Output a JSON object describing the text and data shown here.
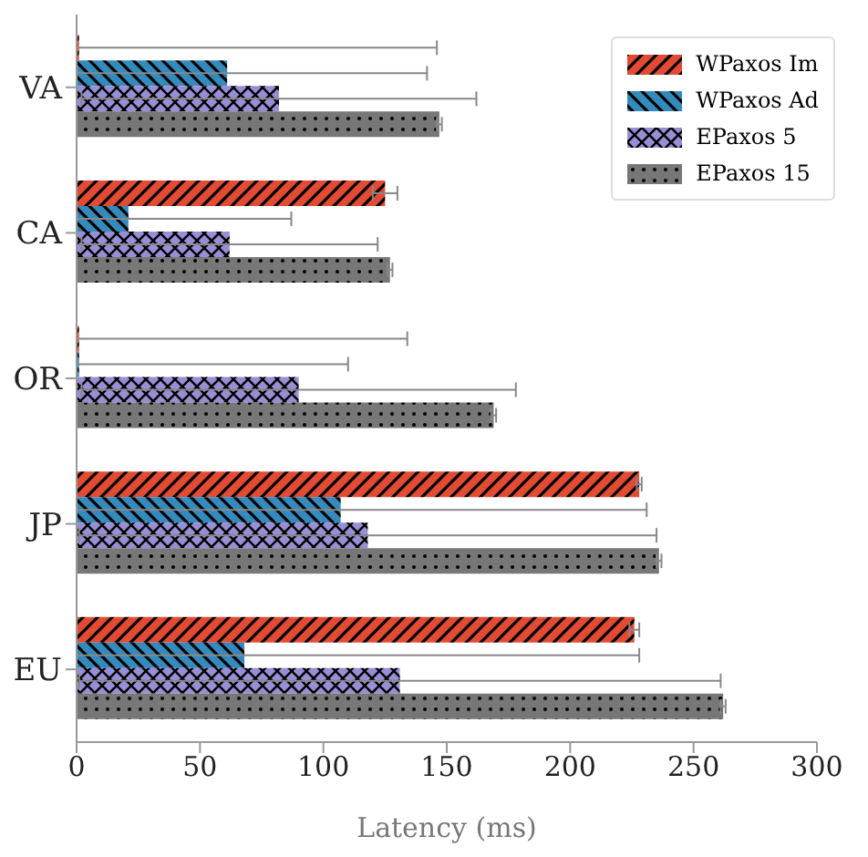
{
  "chart_data": {
    "type": "bar",
    "orientation": "horizontal",
    "xlabel": "Latency (ms)",
    "categories": [
      "VA",
      "CA",
      "OR",
      "JP",
      "EU"
    ],
    "series": [
      {
        "name": "WPaxos Im",
        "color": "#e24a33",
        "values": [
          1,
          125,
          1,
          228,
          226
        ],
        "errors": [
          [
            0,
            146
          ],
          5,
          [
            0,
            134
          ],
          1,
          2
        ]
      },
      {
        "name": "WPaxos Ad",
        "color": "#348abd",
        "values": [
          61,
          21,
          1,
          107,
          68
        ],
        "errors": [
          [
            0,
            142
          ],
          [
            0,
            87
          ],
          [
            0,
            110
          ],
          [
            0,
            231
          ],
          [
            0,
            228
          ]
        ]
      },
      {
        "name": "EPaxos 5",
        "color": "#988ed5",
        "values": [
          82,
          62,
          90,
          118,
          131
        ],
        "errors": [
          80,
          60,
          88,
          117,
          130
        ]
      },
      {
        "name": "EPaxos 15",
        "color": "#777777",
        "values": [
          147,
          127,
          169,
          236,
          262
        ],
        "errors": [
          1,
          1,
          1,
          1,
          1
        ]
      }
    ],
    "xlim": [
      0,
      300
    ],
    "xticks": [
      0,
      50,
      100,
      150,
      200,
      250,
      300
    ],
    "legend": "top right",
    "grid": false
  }
}
